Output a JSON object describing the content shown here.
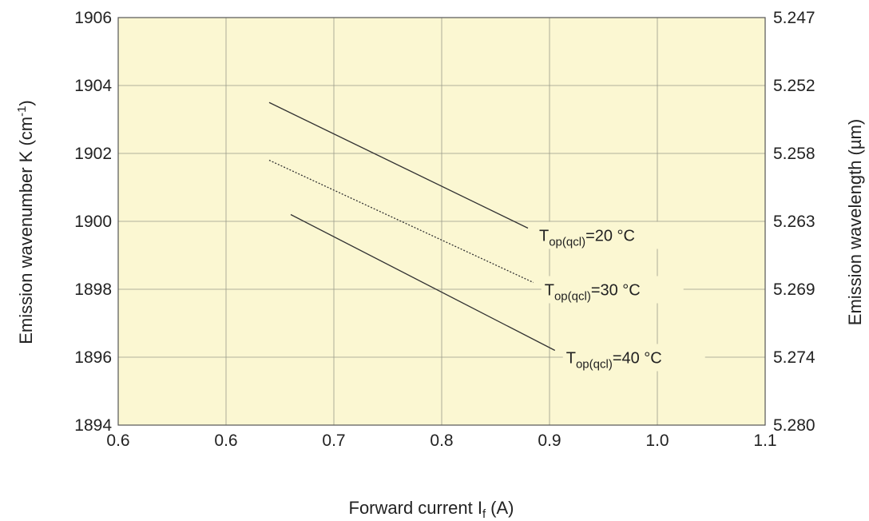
{
  "chart_data": {
    "type": "line",
    "xlabel_main": "Forward current I",
    "xlabel_sub": "f",
    "xlabel_unit": "(A)",
    "ylabel_main": "Emission wavenumber K (cm",
    "ylabel_sup": "-1",
    "ylabel_close": ")",
    "y2label": "Emission wavelength (µm)",
    "x_ticks": [
      "0.6",
      "0.6",
      "0.7",
      "0.8",
      "0.9",
      "1.0",
      "1.1"
    ],
    "y_ticks": [
      "1894",
      "1896",
      "1898",
      "1900",
      "1902",
      "1904",
      "1906"
    ],
    "y2_ticks": [
      "5.280",
      "5.274",
      "5.269",
      "5.263",
      "5.258",
      "5.252",
      "5.247"
    ],
    "xlim": [
      0.5,
      1.1
    ],
    "ylim": [
      1894,
      1906
    ],
    "grid": true,
    "background_color": "#fbf7d2",
    "line_color": "#333333",
    "series": [
      {
        "name_main": "T",
        "name_sub": "op(qcl)",
        "name_rest": "=20 °C",
        "style": "solid",
        "x": [
          0.64,
          0.88
        ],
        "y": [
          1903.5,
          1899.8
        ]
      },
      {
        "name_main": "T",
        "name_sub": "op(qcl)",
        "name_rest": "=30 °C",
        "style": "dotted",
        "x": [
          0.64,
          0.885
        ],
        "y": [
          1901.8,
          1898.2
        ]
      },
      {
        "name_main": "T",
        "name_sub": "op(qcl)",
        "name_rest": "=40 °C",
        "style": "solid",
        "x": [
          0.66,
          0.905
        ],
        "y": [
          1900.2,
          1896.2
        ]
      }
    ]
  }
}
